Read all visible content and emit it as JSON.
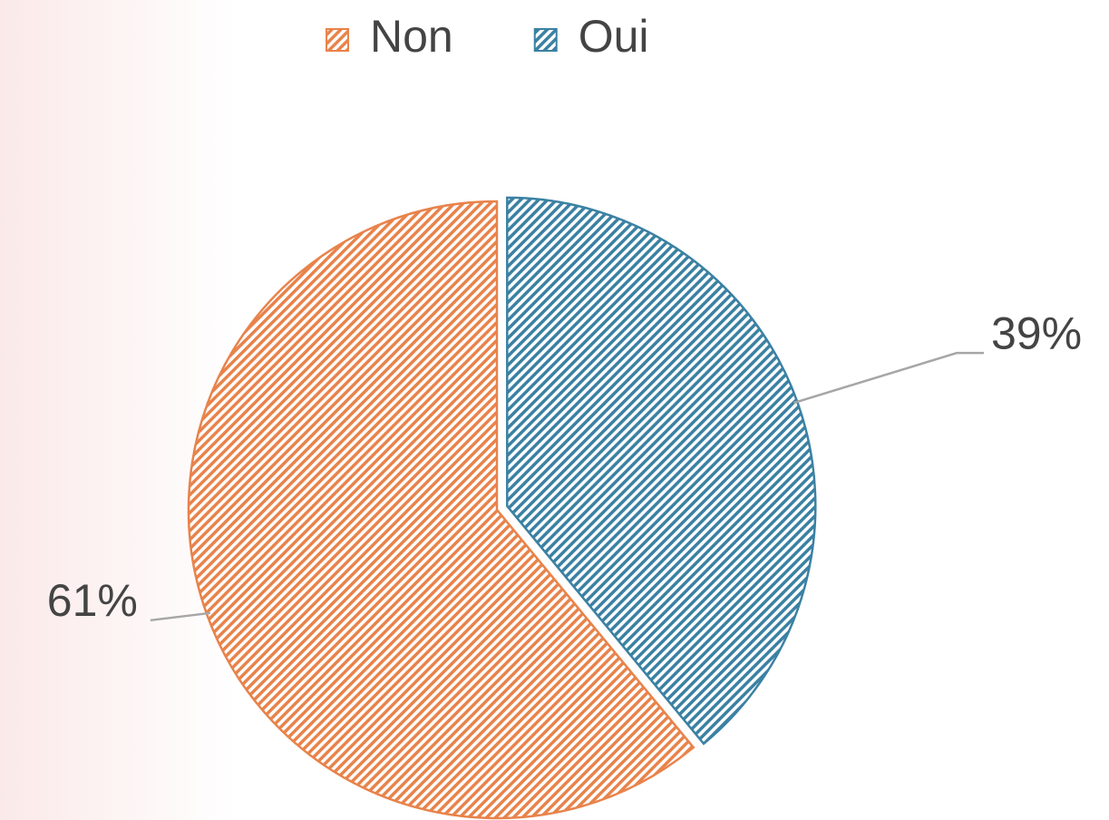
{
  "chart_data": {
    "type": "pie",
    "categories": [
      "Non",
      "Oui"
    ],
    "values": [
      61,
      39
    ],
    "value_labels": [
      "61%",
      "39%"
    ],
    "colors": [
      "#e8834b",
      "#3b81a3"
    ],
    "legend": "top"
  }
}
